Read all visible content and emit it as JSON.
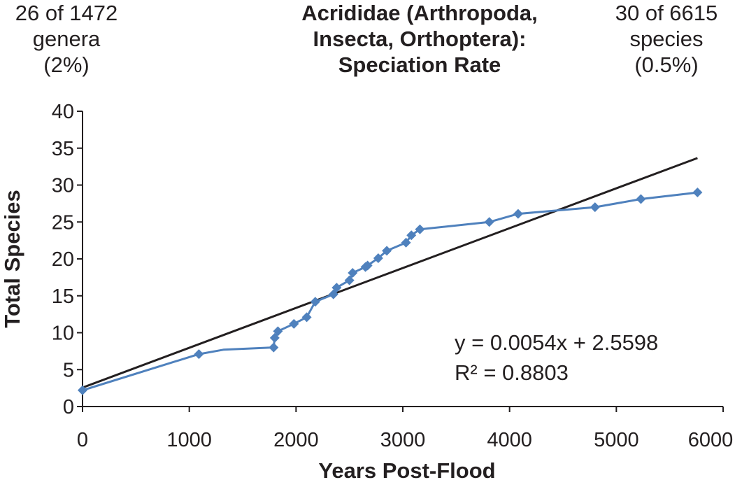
{
  "header": {
    "left": [
      "26 of 1472",
      "genera",
      "(2%)"
    ],
    "title": [
      "Acrididae (Arthropoda,",
      "Insecta, Orthoptera):",
      "Speciation Rate"
    ],
    "right": [
      "30 of 6615",
      "species",
      "(0.5%)"
    ]
  },
  "chart_data": {
    "type": "line",
    "xlabel": "Years Post-Flood",
    "ylabel": "Total Species",
    "xlim": [
      0,
      6000
    ],
    "ylim": [
      0,
      40
    ],
    "xticks": [
      "0",
      "1000",
      "2000",
      "3000",
      "4000",
      "5000",
      "6000"
    ],
    "yticks": [
      "0",
      "5",
      "10",
      "15",
      "20",
      "25",
      "30",
      "35",
      "40"
    ],
    "grid": false,
    "legend": "none",
    "series": [
      {
        "color": "#4f81bd",
        "x": [
          0,
          1090,
          1320,
          1790,
          1800,
          1830,
          1980,
          2100,
          2180,
          2350,
          2380,
          2500,
          2530,
          2650,
          2670,
          2770,
          2850,
          3030,
          3080,
          3160,
          3810,
          4080,
          4800,
          5230,
          5760
        ],
        "y": [
          2.2,
          7.1,
          7.7,
          8.0,
          9.3,
          10.2,
          11.2,
          12.1,
          14.2,
          15.2,
          16.1,
          17.1,
          18.1,
          18.9,
          19.1,
          20.1,
          21.1,
          22.2,
          23.2,
          24.0,
          25.0,
          26.1,
          27.0,
          28.1,
          29.0
        ],
        "markers": [
          true,
          true,
          false,
          true,
          true,
          true,
          true,
          true,
          true,
          true,
          true,
          true,
          true,
          true,
          true,
          true,
          true,
          true,
          true,
          true,
          true,
          true,
          true,
          true,
          true
        ]
      }
    ],
    "trendline": {
      "color": "#231f20",
      "slope": 0.0054,
      "intercept": 2.5598,
      "x_range": [
        0,
        5760
      ],
      "equation": "y = 0.0054x + 2.5598",
      "r2_label": "R² = 0.8803"
    }
  }
}
